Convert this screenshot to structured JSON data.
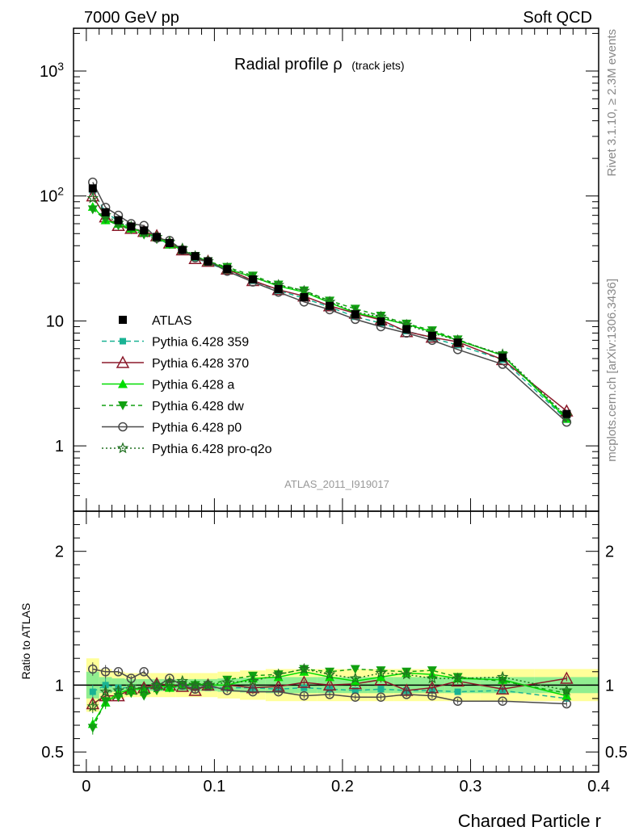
{
  "header": {
    "left": "7000 GeV pp",
    "right": "Soft QCD"
  },
  "side_labels": {
    "rivet": "Rivet 3.1.10, ≥ 2.3M events",
    "mcplots": "mcplots.cern.ch [arXiv:1306.3436]"
  },
  "title": {
    "main": "Radial profile ρ",
    "sub": "(track jets)"
  },
  "analysis_id": "ATLAS_2011_I919017",
  "chart_data": [
    {
      "type": "line",
      "panel": "main",
      "yscale": "log",
      "xlim": [
        -0.01,
        0.4
      ],
      "ylim": [
        0.3,
        2200
      ],
      "ytick_labels": [
        "1",
        "10",
        "10^2",
        "10^3"
      ],
      "legend_position": "middle-left",
      "x": [
        0.005,
        0.015,
        0.025,
        0.035,
        0.045,
        0.055,
        0.065,
        0.075,
        0.085,
        0.095,
        0.11,
        0.13,
        0.15,
        0.17,
        0.19,
        0.21,
        0.23,
        0.25,
        0.27,
        0.29,
        0.325,
        0.375
      ],
      "data": {
        "name": "ATLAS",
        "values": [
          115,
          74,
          64,
          57,
          53,
          47,
          42,
          37,
          33,
          30,
          26,
          21.5,
          18,
          15.5,
          13.2,
          11.3,
          9.9,
          8.6,
          7.6,
          6.7,
          5.1,
          1.8
        ]
      },
      "series": [
        {
          "name": "Pythia 6.428 359",
          "color": "#1ab394",
          "dash": "6,4",
          "marker": "square",
          "values": [
            110,
            74,
            63,
            56,
            51,
            46,
            41,
            37,
            32,
            29,
            25.5,
            21,
            17.5,
            15.2,
            12.9,
            10.8,
            9.6,
            8.3,
            7.3,
            6.4,
            4.9,
            1.62
          ]
        },
        {
          "name": "Pythia 6.428 370",
          "color": "#8b1a2b",
          "dash": "",
          "marker": "triangle-open",
          "values": [
            100,
            68,
            58,
            55,
            52,
            48,
            42,
            37,
            31.5,
            30,
            26,
            21,
            17.8,
            15.8,
            13.2,
            11.5,
            10.2,
            8.2,
            7.4,
            6.8,
            4.9,
            1.9
          ]
        },
        {
          "name": "Pythia 6.428 a",
          "color": "#00dd00",
          "dash": "",
          "marker": "triangle",
          "values": [
            82,
            64,
            60,
            55,
            51,
            47,
            41,
            37,
            33,
            30,
            26,
            22.5,
            19,
            17,
            14,
            11.6,
            10.5,
            9.4,
            8.2,
            7,
            5.3,
            1.65
          ]
        },
        {
          "name": "Pythia 6.428 dw",
          "color": "#10a010",
          "dash": "5,4",
          "marker": "triangle-down",
          "values": [
            78,
            65,
            58,
            54,
            49,
            45,
            41,
            37,
            33,
            30,
            27,
            23,
            19.5,
            17.5,
            14.5,
            12.5,
            11,
            9.5,
            8.4,
            7.1,
            5.3,
            1.7
          ]
        },
        {
          "name": "Pythia 6.428 p0",
          "color": "#4a4a4a",
          "dash": "",
          "marker": "circle-open",
          "values": [
            129,
            81,
            70,
            60,
            58,
            46,
            44,
            37,
            32,
            30,
            25,
            20.5,
            17,
            14.2,
            12.3,
            10.3,
            9,
            8,
            7,
            5.9,
            4.5,
            1.55
          ]
        },
        {
          "name": "Pythia 6.428 pro-q2o",
          "color": "#207020",
          "dash": "2,3",
          "marker": "star-open",
          "values": [
            96,
            70,
            61,
            57,
            51,
            47,
            43,
            38,
            33,
            30,
            26.5,
            22.2,
            19.4,
            17.4,
            14.2,
            11.8,
            10.8,
            9.3,
            8,
            7,
            5.4,
            1.72
          ]
        }
      ]
    },
    {
      "type": "line",
      "panel": "ratio",
      "ylabel": "Ratio to ATLAS",
      "xlabel": "Charged Particle r",
      "xlim": [
        -0.01,
        0.4
      ],
      "ylim": [
        0.35,
        2.3
      ],
      "ytick_labels": [
        "0.5",
        "1",
        "2"
      ],
      "xtick_labels": [
        "0",
        "0.1",
        "0.2",
        "0.3",
        "0.4"
      ],
      "x": [
        0.005,
        0.015,
        0.025,
        0.035,
        0.045,
        0.055,
        0.065,
        0.075,
        0.085,
        0.095,
        0.11,
        0.13,
        0.15,
        0.17,
        0.19,
        0.21,
        0.23,
        0.25,
        0.27,
        0.29,
        0.325,
        0.375
      ],
      "band_inner": [
        0.94,
        0.95,
        0.95,
        0.95,
        0.95,
        0.95,
        0.95,
        0.95,
        0.95,
        0.95,
        0.95,
        0.95,
        0.95,
        0.95,
        0.95,
        0.95,
        0.95,
        0.95,
        0.95,
        0.95,
        0.95,
        0.95
      ],
      "band_outer": [
        0.2,
        0.12,
        0.1,
        0.09,
        0.09,
        0.09,
        0.09,
        0.09,
        0.09,
        0.09,
        0.1,
        0.11,
        0.12,
        0.12,
        0.12,
        0.12,
        0.12,
        0.12,
        0.12,
        0.12,
        0.12,
        0.12
      ],
      "series": [
        {
          "name": "Pythia 6.428 359",
          "color": "#1ab394",
          "dash": "6,4",
          "marker": "square",
          "values": [
            0.95,
            1.0,
            0.98,
            0.98,
            0.97,
            0.98,
            0.98,
            0.99,
            0.98,
            0.98,
            0.98,
            0.98,
            0.97,
            0.98,
            0.97,
            0.96,
            0.97,
            0.96,
            0.96,
            0.95,
            0.96,
            0.9
          ]
        },
        {
          "name": "Pythia 6.428 370",
          "color": "#8b1a2b",
          "dash": "",
          "marker": "triangle-open",
          "values": [
            0.86,
            0.92,
            0.92,
            0.97,
            0.98,
            1.01,
            1.0,
            0.99,
            0.96,
            1.0,
            1.0,
            0.98,
            0.99,
            1.02,
            1.0,
            1.01,
            1.04,
            0.96,
            0.98,
            1.03,
            0.97,
            1.05
          ]
        },
        {
          "name": "Pythia 6.428 a",
          "color": "#00dd00",
          "dash": "",
          "marker": "triangle",
          "values": [
            0.71,
            0.87,
            0.94,
            0.97,
            0.97,
            1.0,
            0.98,
            1.0,
            1.01,
            1.0,
            1.0,
            1.05,
            1.06,
            1.1,
            1.06,
            1.03,
            1.06,
            1.09,
            1.08,
            1.05,
            1.04,
            0.92
          ]
        },
        {
          "name": "Pythia 6.428 dw",
          "color": "#10a010",
          "dash": "5,4",
          "marker": "triangle-down",
          "values": [
            0.68,
            0.88,
            0.91,
            0.94,
            0.92,
            0.96,
            0.98,
            1.0,
            1.0,
            1.0,
            1.04,
            1.07,
            1.08,
            1.12,
            1.1,
            1.12,
            1.11,
            1.1,
            1.11,
            1.06,
            1.03,
            0.94
          ]
        },
        {
          "name": "Pythia 6.428 p0",
          "color": "#4a4a4a",
          "dash": "",
          "marker": "circle-open",
          "values": [
            1.12,
            1.1,
            1.1,
            1.05,
            1.1,
            0.99,
            1.05,
            1.0,
            0.97,
            1.0,
            0.96,
            0.95,
            0.95,
            0.92,
            0.93,
            0.91,
            0.91,
            0.93,
            0.92,
            0.88,
            0.88,
            0.86
          ]
        },
        {
          "name": "Pythia 6.428 pro-q2o",
          "color": "#207020",
          "dash": "2,3",
          "marker": "star-open",
          "values": [
            0.84,
            0.95,
            0.96,
            0.99,
            0.97,
            1.0,
            1.02,
            1.03,
            1.0,
            1.0,
            1.02,
            1.03,
            1.08,
            1.12,
            1.08,
            1.05,
            1.09,
            1.08,
            1.05,
            1.05,
            1.06,
            0.96
          ]
        }
      ]
    }
  ]
}
